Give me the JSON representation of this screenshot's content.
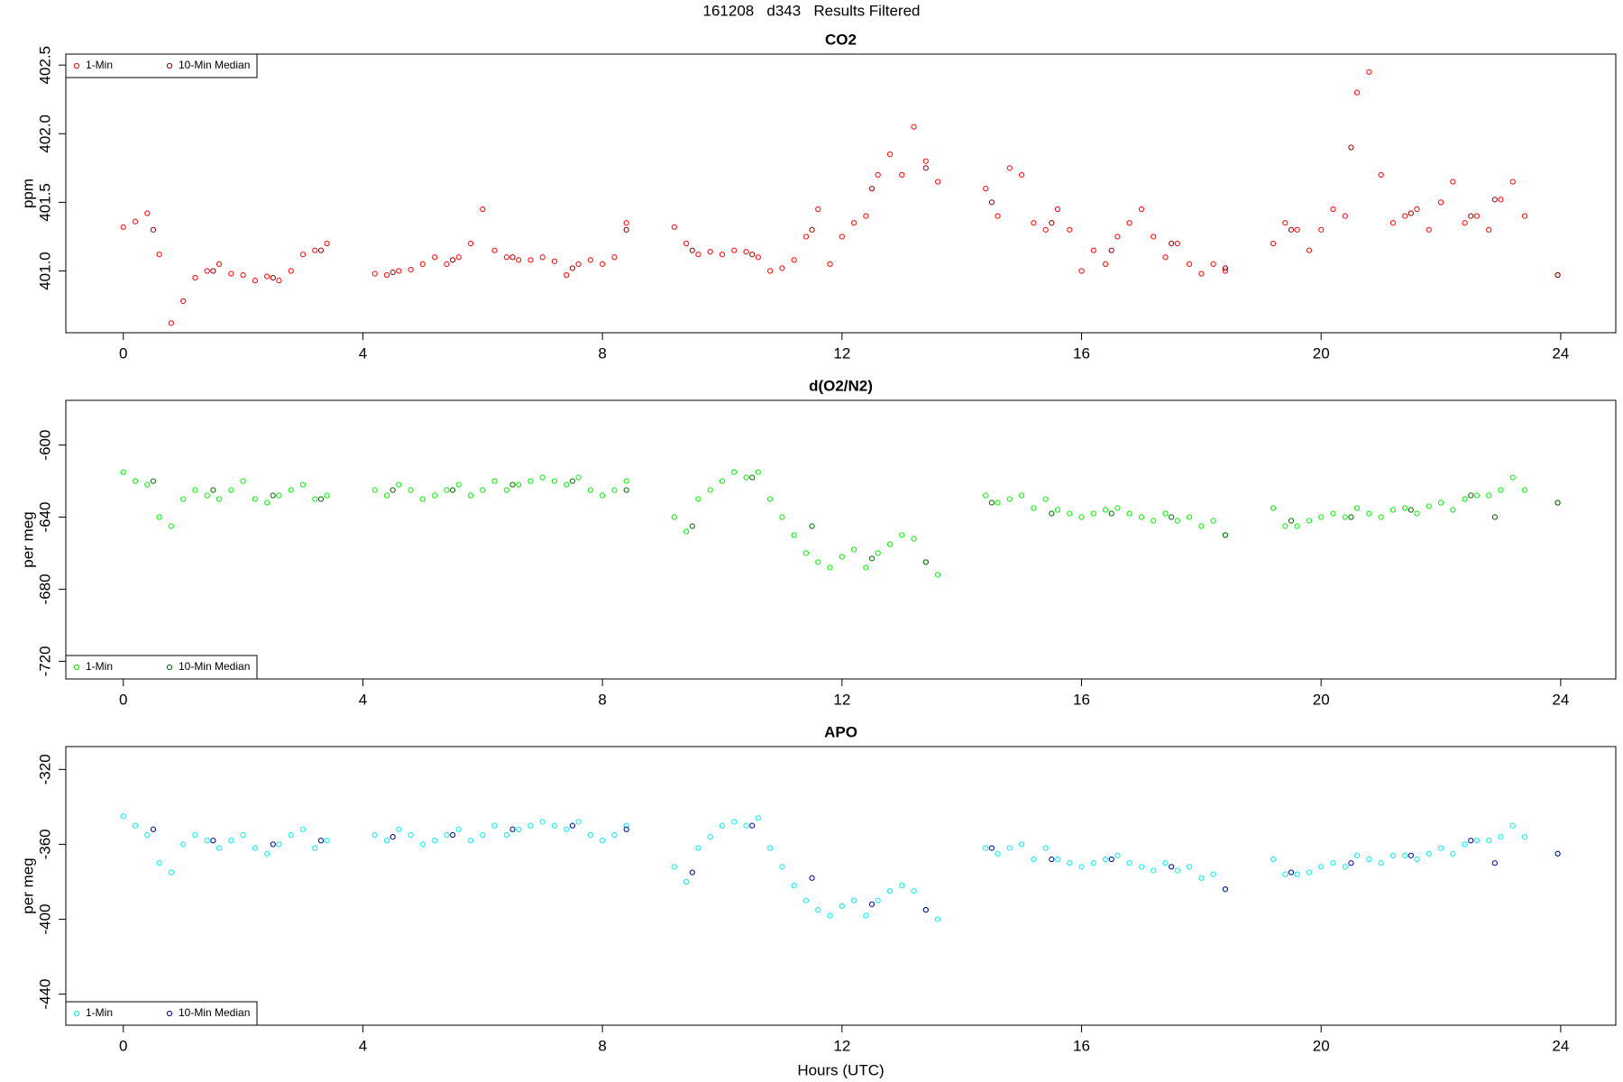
{
  "title": "161208   d343   Results Filtered",
  "chart_data": [
    {
      "type": "scatter",
      "title": "CO2",
      "ylabel": "ppm",
      "legend": "top-left",
      "xlim": [
        -0.96,
        24.92
      ],
      "xticks": [
        0,
        4,
        8,
        12,
        16,
        20,
        24
      ],
      "ylim": [
        400.55,
        402.58
      ],
      "yticks": [
        {
          "value": 401,
          "label": "401.0"
        },
        {
          "value": 401.5,
          "label": "401.5"
        },
        {
          "value": 402,
          "label": "402.0"
        },
        {
          "value": 402.5,
          "label": "402.5"
        }
      ],
      "series": [
        {
          "name": "1-Min",
          "color": "#ff0000",
          "x": [
            0,
            0.2,
            0.4,
            0.6,
            0.8,
            1.0,
            1.2,
            1.4,
            1.6,
            1.8,
            2.0,
            2.2,
            2.4,
            2.6,
            2.8,
            3.0,
            3.2,
            3.4,
            4.2,
            4.4,
            4.6,
            4.8,
            5.0,
            5.2,
            5.4,
            5.6,
            5.8,
            6.0,
            6.2,
            6.4,
            6.6,
            6.8,
            7.0,
            7.2,
            7.4,
            7.6,
            7.8,
            8.0,
            8.2,
            8.4,
            9.2,
            9.4,
            9.6,
            9.8,
            10.0,
            10.2,
            10.4,
            10.6,
            10.8,
            11.0,
            11.2,
            11.4,
            11.6,
            11.8,
            12.0,
            12.2,
            12.4,
            12.6,
            12.8,
            13.0,
            13.2,
            13.4,
            13.6,
            14.4,
            14.6,
            14.8,
            15.0,
            15.2,
            15.4,
            15.6,
            15.8,
            16.0,
            16.2,
            16.4,
            16.6,
            16.8,
            17.0,
            17.2,
            17.4,
            17.6,
            17.8,
            18.0,
            18.2,
            18.4,
            19.2,
            19.4,
            19.6,
            19.8,
            20.0,
            20.2,
            20.4,
            20.6,
            20.8,
            21.0,
            21.2,
            21.4,
            21.6,
            21.8,
            22.0,
            22.2,
            22.4,
            22.6,
            22.8,
            23.0,
            23.2,
            23.4,
            23.95
          ],
          "values": [
            401.32,
            401.36,
            401.42,
            401.12,
            400.62,
            400.78,
            400.95,
            401.0,
            401.05,
            400.98,
            400.97,
            400.93,
            400.96,
            400.93,
            401.0,
            401.12,
            401.15,
            401.2,
            400.98,
            400.97,
            401.0,
            401.01,
            401.05,
            401.1,
            401.05,
            401.1,
            401.2,
            401.45,
            401.15,
            401.1,
            401.08,
            401.08,
            401.1,
            401.07,
            400.97,
            401.05,
            401.08,
            401.05,
            401.1,
            401.35,
            401.32,
            401.2,
            401.12,
            401.14,
            401.12,
            401.15,
            401.14,
            401.1,
            401.0,
            401.02,
            401.08,
            401.25,
            401.45,
            401.05,
            401.25,
            401.35,
            401.4,
            401.7,
            401.85,
            401.7,
            402.05,
            401.8,
            401.65,
            401.6,
            401.4,
            401.75,
            401.7,
            401.35,
            401.3,
            401.45,
            401.3,
            401.0,
            401.15,
            401.05,
            401.25,
            401.35,
            401.45,
            401.25,
            401.1,
            401.2,
            401.05,
            400.98,
            401.05,
            401.0,
            401.2,
            401.35,
            401.3,
            401.15,
            401.3,
            401.45,
            401.4,
            402.3,
            402.45,
            401.7,
            401.35,
            401.4,
            401.45,
            401.3,
            401.5,
            401.65,
            401.35,
            401.4,
            401.3,
            401.52,
            401.65,
            401.4,
            400.97
          ]
        },
        {
          "name": "10-Min Median",
          "color": "#8b0000",
          "x": [
            0.5,
            1.5,
            2.5,
            3.3,
            4.5,
            5.5,
            6.5,
            7.5,
            8.4,
            9.5,
            10.5,
            11.5,
            12.5,
            13.4,
            14.5,
            15.5,
            16.5,
            17.5,
            18.4,
            19.5,
            20.5,
            21.5,
            22.5,
            22.9,
            23.95
          ],
          "values": [
            401.3,
            401.0,
            400.95,
            401.15,
            400.99,
            401.08,
            401.1,
            401.02,
            401.3,
            401.15,
            401.12,
            401.3,
            401.6,
            401.75,
            401.5,
            401.35,
            401.15,
            401.2,
            401.02,
            401.3,
            401.9,
            401.42,
            401.4,
            401.52,
            400.97
          ]
        }
      ]
    },
    {
      "type": "scatter",
      "title": "d(O2/N2)",
      "ylabel": "per meg",
      "legend": "bottom-left",
      "xlim": [
        -0.96,
        24.92
      ],
      "xticks": [
        0,
        4,
        8,
        12,
        16,
        20,
        24
      ],
      "ylim": [
        -729.8,
        -575.2
      ],
      "yticks": [
        -600,
        -640,
        -680,
        -720
      ],
      "series": [
        {
          "name": "1-Min",
          "color": "#00ee00",
          "x": [
            0,
            0.2,
            0.4,
            0.6,
            0.8,
            1.0,
            1.2,
            1.4,
            1.6,
            1.8,
            2.0,
            2.2,
            2.4,
            2.6,
            2.8,
            3.0,
            3.2,
            3.4,
            4.2,
            4.4,
            4.6,
            4.8,
            5.0,
            5.2,
            5.4,
            5.6,
            5.8,
            6.0,
            6.2,
            6.4,
            6.6,
            6.8,
            7.0,
            7.2,
            7.4,
            7.6,
            7.8,
            8.0,
            8.2,
            8.4,
            9.2,
            9.4,
            9.6,
            9.8,
            10.0,
            10.2,
            10.4,
            10.6,
            10.8,
            11.0,
            11.2,
            11.4,
            11.6,
            11.8,
            12.0,
            12.2,
            12.4,
            12.6,
            12.8,
            13.0,
            13.2,
            13.4,
            13.6,
            14.4,
            14.6,
            14.8,
            15.0,
            15.2,
            15.4,
            15.6,
            15.8,
            16.0,
            16.2,
            16.4,
            16.6,
            16.8,
            17.0,
            17.2,
            17.4,
            17.6,
            17.8,
            18.0,
            18.2,
            18.4,
            19.2,
            19.4,
            19.6,
            19.8,
            20.0,
            20.2,
            20.4,
            20.6,
            20.8,
            21.0,
            21.2,
            21.4,
            21.6,
            21.8,
            22.0,
            22.2,
            22.4,
            22.6,
            22.8,
            23.0,
            23.2,
            23.4,
            23.95
          ],
          "values": [
            -615,
            -620,
            -622,
            -640,
            -645,
            -630,
            -625,
            -628,
            -630,
            -625,
            -620,
            -630,
            -632,
            -628,
            -625,
            -622,
            -630,
            -628,
            -625,
            -628,
            -622,
            -625,
            -630,
            -628,
            -625,
            -622,
            -628,
            -625,
            -620,
            -625,
            -622,
            -620,
            -618,
            -620,
            -622,
            -618,
            -625,
            -628,
            -625,
            -620,
            -640,
            -648,
            -630,
            -625,
            -620,
            -615,
            -618,
            -615,
            -630,
            -640,
            -650,
            -660,
            -665,
            -668,
            -662,
            -658,
            -668,
            -660,
            -655,
            -650,
            -652,
            -665,
            -672,
            -628,
            -632,
            -630,
            -628,
            -635,
            -630,
            -636,
            -638,
            -640,
            -638,
            -636,
            -635,
            -638,
            -640,
            -642,
            -638,
            -642,
            -640,
            -645,
            -642,
            -650,
            -635,
            -645,
            -645,
            -642,
            -640,
            -638,
            -640,
            -635,
            -638,
            -640,
            -636,
            -635,
            -638,
            -634,
            -632,
            -636,
            -630,
            -628,
            -628,
            -625,
            -618,
            -625,
            -632
          ]
        },
        {
          "name": "10-Min Median",
          "color": "#006400",
          "x": [
            0.5,
            1.5,
            2.5,
            3.3,
            4.5,
            5.5,
            6.5,
            7.5,
            8.4,
            9.5,
            10.5,
            11.5,
            12.5,
            13.4,
            14.5,
            15.5,
            16.5,
            17.5,
            18.4,
            19.5,
            20.5,
            21.5,
            22.5,
            22.9,
            23.95
          ],
          "values": [
            -620,
            -625,
            -628,
            -630,
            -625,
            -625,
            -622,
            -620,
            -625,
            -645,
            -618,
            -645,
            -663,
            -665,
            -632,
            -638,
            -638,
            -640,
            -650,
            -642,
            -640,
            -636,
            -628,
            -640,
            -632
          ]
        }
      ]
    },
    {
      "type": "scatter",
      "title": "APO",
      "ylabel": "per meg",
      "xlabel": "Hours (UTC)",
      "legend": "bottom-left",
      "xlim": [
        -0.96,
        24.92
      ],
      "xticks": [
        0,
        4,
        8,
        12,
        16,
        20,
        24
      ],
      "ylim": [
        -456.6,
        -307.8
      ],
      "yticks": [
        -320,
        -360,
        -400,
        -440
      ],
      "series": [
        {
          "name": "1-Min",
          "color": "#00eeee",
          "x": [
            0,
            0.2,
            0.4,
            0.6,
            0.8,
            1.0,
            1.2,
            1.4,
            1.6,
            1.8,
            2.0,
            2.2,
            2.4,
            2.6,
            2.8,
            3.0,
            3.2,
            3.4,
            4.2,
            4.4,
            4.6,
            4.8,
            5.0,
            5.2,
            5.4,
            5.6,
            5.8,
            6.0,
            6.2,
            6.4,
            6.6,
            6.8,
            7.0,
            7.2,
            7.4,
            7.6,
            7.8,
            8.0,
            8.2,
            8.4,
            9.2,
            9.4,
            9.6,
            9.8,
            10.0,
            10.2,
            10.4,
            10.6,
            10.8,
            11.0,
            11.2,
            11.4,
            11.6,
            11.8,
            12.0,
            12.2,
            12.4,
            12.6,
            12.8,
            13.0,
            13.2,
            13.4,
            13.6,
            14.4,
            14.6,
            14.8,
            15.0,
            15.2,
            15.4,
            15.6,
            15.8,
            16.0,
            16.2,
            16.4,
            16.6,
            16.8,
            17.0,
            17.2,
            17.4,
            17.6,
            17.8,
            18.0,
            18.2,
            18.4,
            19.2,
            19.4,
            19.6,
            19.8,
            20.0,
            20.2,
            20.4,
            20.6,
            20.8,
            21.0,
            21.2,
            21.4,
            21.6,
            21.8,
            22.0,
            22.2,
            22.4,
            22.6,
            22.8,
            23.0,
            23.2,
            23.4,
            23.95
          ],
          "values": [
            -345,
            -350,
            -355,
            -370,
            -375,
            -360,
            -355,
            -358,
            -362,
            -358,
            -355,
            -362,
            -365,
            -360,
            -355,
            -352,
            -362,
            -358,
            -355,
            -358,
            -352,
            -355,
            -360,
            -358,
            -355,
            -352,
            -358,
            -355,
            -350,
            -355,
            -352,
            -350,
            -348,
            -350,
            -352,
            -348,
            -355,
            -358,
            -355,
            -350,
            -372,
            -380,
            -362,
            -356,
            -350,
            -348,
            -350,
            -346,
            -362,
            -372,
            -382,
            -390,
            -395,
            -398,
            -393,
            -390,
            -398,
            -390,
            -385,
            -382,
            -385,
            -395,
            -400,
            -362,
            -365,
            -362,
            -360,
            -368,
            -362,
            -368,
            -370,
            -372,
            -370,
            -368,
            -366,
            -370,
            -372,
            -374,
            -370,
            -374,
            -372,
            -378,
            -376,
            -384,
            -368,
            -376,
            -376,
            -375,
            -372,
            -370,
            -372,
            -366,
            -368,
            -370,
            -366,
            -366,
            -368,
            -365,
            -362,
            -365,
            -360,
            -358,
            -358,
            -356,
            -350,
            -356,
            -365
          ]
        },
        {
          "name": "10-Min Median",
          "color": "#00008b",
          "x": [
            0.5,
            1.5,
            2.5,
            3.3,
            4.5,
            5.5,
            6.5,
            7.5,
            8.4,
            9.5,
            10.5,
            11.5,
            12.5,
            13.4,
            14.5,
            15.5,
            16.5,
            17.5,
            18.4,
            19.5,
            20.5,
            21.5,
            22.5,
            22.9,
            23.95
          ],
          "values": [
            -352,
            -358,
            -360,
            -358,
            -356,
            -355,
            -352,
            -350,
            -352,
            -375,
            -350,
            -378,
            -392,
            -395,
            -362,
            -368,
            -368,
            -372,
            -384,
            -375,
            -370,
            -366,
            -358,
            -370,
            -365
          ]
        }
      ]
    }
  ]
}
